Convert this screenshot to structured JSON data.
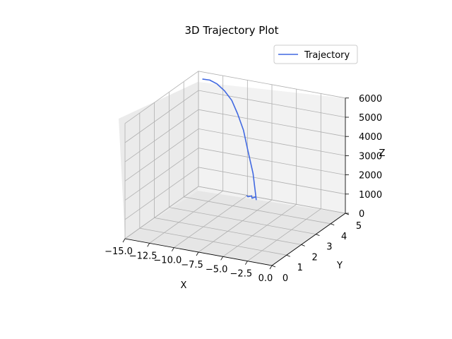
{
  "chart_data": {
    "type": "line",
    "title": "3D Trajectory Plot",
    "xlabel": "X",
    "ylabel": "Y",
    "zlabel": "Z",
    "xlim": [
      -15.0,
      0.0
    ],
    "ylim": [
      0,
      5
    ],
    "zlim": [
      0,
      6000
    ],
    "x_ticks": [
      -15.0,
      -12.5,
      -10.0,
      -7.5,
      -5.0,
      -2.5,
      0.0
    ],
    "x_tick_labels": [
      "−15.0",
      "−12.5",
      "−10.0",
      "−7.5",
      "−5.0",
      "−2.5",
      "0.0"
    ],
    "y_ticks": [
      0,
      1,
      2,
      3,
      4,
      5
    ],
    "y_tick_labels": [
      "0",
      "1",
      "2",
      "3",
      "4",
      "5"
    ],
    "z_ticks": [
      0,
      1000,
      2000,
      3000,
      4000,
      5000,
      6000
    ],
    "z_tick_labels": [
      "0",
      "1000",
      "2000",
      "3000",
      "4000",
      "5000",
      "6000"
    ],
    "grid": true,
    "legend_position": "upper-right",
    "series": [
      {
        "name": "Trajectory",
        "color": "#4169e1",
        "points": [
          [
            -14.0,
            4.6,
            5900
          ],
          [
            -13.4,
            4.7,
            5850
          ],
          [
            -12.8,
            4.8,
            5650
          ],
          [
            -12.2,
            4.9,
            5300
          ],
          [
            -11.6,
            5.0,
            4800
          ],
          [
            -11.0,
            5.0,
            4150
          ],
          [
            -10.4,
            5.0,
            3350
          ],
          [
            -9.8,
            4.9,
            2400
          ],
          [
            -9.2,
            4.85,
            1300
          ],
          [
            -8.8,
            4.8,
            0
          ],
          [
            -9.0,
            4.9,
            70
          ],
          [
            -9.3,
            4.85,
            0
          ],
          [
            -9.5,
            4.95,
            50
          ],
          [
            -9.8,
            4.9,
            0
          ],
          [
            -10.0,
            4.95,
            30
          ]
        ]
      }
    ]
  }
}
